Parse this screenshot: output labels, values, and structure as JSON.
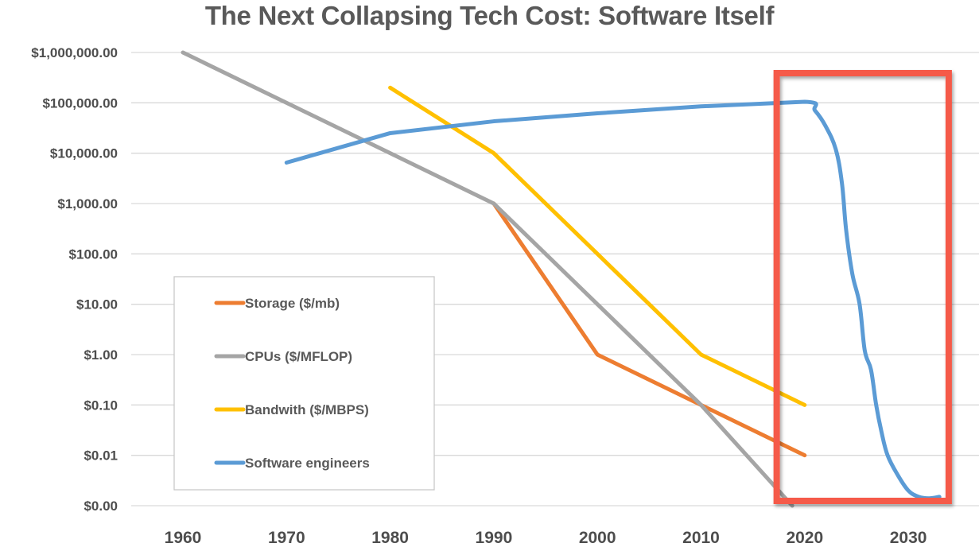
{
  "chart_data": {
    "type": "line",
    "title": "The Next Collapsing Tech Cost: Software Itself",
    "xlabel": "",
    "ylabel": "",
    "y_scale": "log",
    "ylim": [
      0.001,
      1000000
    ],
    "xlim": [
      1955,
      2035
    ],
    "grid": true,
    "legend_position": "lower-left",
    "y_ticks": [
      {
        "value": 1000000,
        "label": "$1,000,000.00"
      },
      {
        "value": 100000,
        "label": "$100,000.00"
      },
      {
        "value": 10000,
        "label": "$10,000.00"
      },
      {
        "value": 1000,
        "label": "$1,000.00"
      },
      {
        "value": 100,
        "label": "$100.00"
      },
      {
        "value": 10,
        "label": "$10.00"
      },
      {
        "value": 1,
        "label": "$1.00"
      },
      {
        "value": 0.1,
        "label": "$0.10"
      },
      {
        "value": 0.01,
        "label": "$0.01"
      },
      {
        "value": 0.001,
        "label": "$0.00"
      }
    ],
    "x_ticks": [
      {
        "value": 1960,
        "label": "1960"
      },
      {
        "value": 1970,
        "label": "1970"
      },
      {
        "value": 1980,
        "label": "1980"
      },
      {
        "value": 1990,
        "label": "1990"
      },
      {
        "value": 2000,
        "label": "2000"
      },
      {
        "value": 2010,
        "label": "2010"
      },
      {
        "value": 2020,
        "label": "2020"
      },
      {
        "value": 2030,
        "label": "2030"
      }
    ],
    "series": [
      {
        "name": "Storage ($/mb)",
        "color": "#ED7D31",
        "x": [
          1990,
          2000,
          2010,
          2020
        ],
        "values": [
          1000,
          1,
          0.1,
          0.01
        ]
      },
      {
        "name": "CPUs ($/MFLOP)",
        "color": "#A5A5A5",
        "x": [
          1960,
          1980,
          1990,
          2000,
          2010,
          2018.8
        ],
        "values": [
          1000000,
          10000,
          1000,
          10,
          0.1,
          0.001
        ]
      },
      {
        "name": "Bandwith ($/MBPS)",
        "color": "#FFC000",
        "x": [
          1980,
          1990,
          2000,
          2010,
          2020
        ],
        "values": [
          200000,
          10000,
          100,
          1,
          0.1
        ]
      },
      {
        "name": "Software engineers",
        "color": "#5B9BD5",
        "x": [
          1970,
          1980,
          1990,
          2000,
          2010,
          2020,
          2021,
          2022,
          2023,
          2023.6,
          2024,
          2024.6,
          2025.3,
          2025.8,
          2026.4,
          2026.9,
          2027.4,
          2028,
          2029,
          2030,
          2031,
          2032,
          2033
        ],
        "values": [
          6500,
          25000,
          43000,
          62000,
          85000,
          105000,
          70000,
          35000,
          12000,
          2500,
          300,
          40,
          10,
          1.2,
          0.5,
          0.1,
          0.03,
          0.01,
          0.004,
          0.002,
          0.0015,
          0.0014,
          0.0015
        ]
      }
    ],
    "annotations": [
      {
        "type": "highlight-box",
        "color": "#F55A4A",
        "x_range": [
          2017.3,
          2033.9
        ],
        "y_range": [
          0.001,
          150000
        ],
        "note": "red rectangle highlighting software engineer cost collapse"
      }
    ]
  }
}
